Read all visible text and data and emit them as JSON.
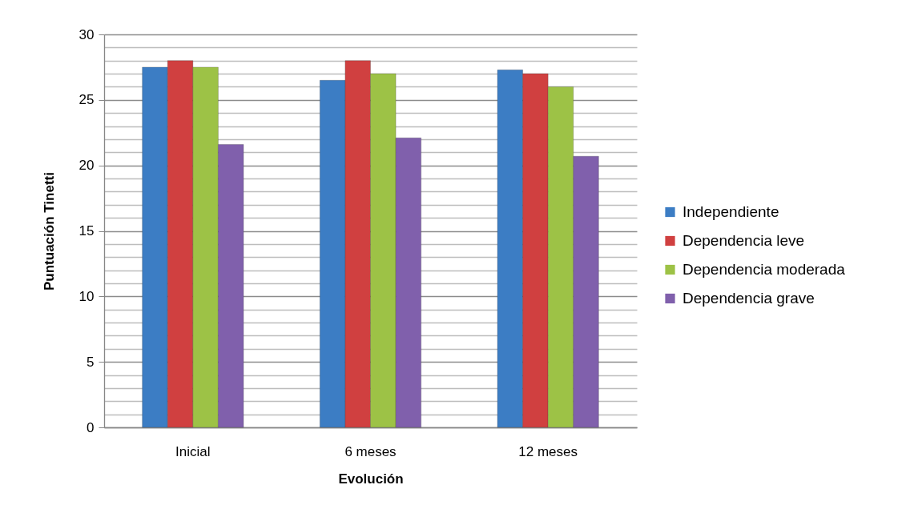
{
  "chart_data": {
    "type": "bar",
    "xlabel": "Evolución",
    "ylabel": "Puntuación Tinetti",
    "categories": [
      "Inicial",
      "6 meses",
      "12 meses"
    ],
    "series": [
      {
        "name": "Independiente",
        "color": "#3c7dc4",
        "values": [
          27.5,
          26.5,
          27.3
        ]
      },
      {
        "name": "Dependencia leve",
        "color": "#d04040",
        "values": [
          28,
          28,
          27
        ]
      },
      {
        "name": "Dependencia moderada",
        "color": "#9dc246",
        "values": [
          27.5,
          27,
          26
        ]
      },
      {
        "name": "Dependencia grave",
        "color": "#8060ac",
        "values": [
          21.6,
          22.1,
          20.7
        ]
      }
    ],
    "ylim": [
      0,
      30
    ],
    "yticks": [
      0,
      {
        "value": 1,
        "label": null
      },
      {
        "value": 2,
        "label": null
      },
      {
        "value": 3,
        "label": null
      },
      {
        "value": 4,
        "label": null
      },
      5,
      {
        "value": 6,
        "label": null
      },
      {
        "value": 7,
        "label": null
      },
      {
        "value": 8,
        "label": null
      },
      {
        "value": 9,
        "label": null
      },
      10,
      {
        "value": 11,
        "label": null
      },
      {
        "value": 12,
        "label": null
      },
      {
        "value": 13,
        "label": null
      },
      {
        "value": 14,
        "label": null
      },
      15,
      {
        "value": 16,
        "label": null
      },
      {
        "value": 17,
        "label": null
      },
      {
        "value": 18,
        "label": null
      },
      {
        "value": 19,
        "label": null
      },
      20,
      {
        "value": 21,
        "label": null
      },
      {
        "value": 22,
        "label": null
      },
      {
        "value": 23,
        "label": null
      },
      {
        "value": 24,
        "label": null
      },
      25,
      {
        "value": 26,
        "label": null
      },
      {
        "value": 27,
        "label": null
      },
      {
        "value": 28,
        "label": null
      },
      {
        "value": 29,
        "label": null
      },
      30
    ],
    "grid": "y",
    "legend": "right"
  }
}
